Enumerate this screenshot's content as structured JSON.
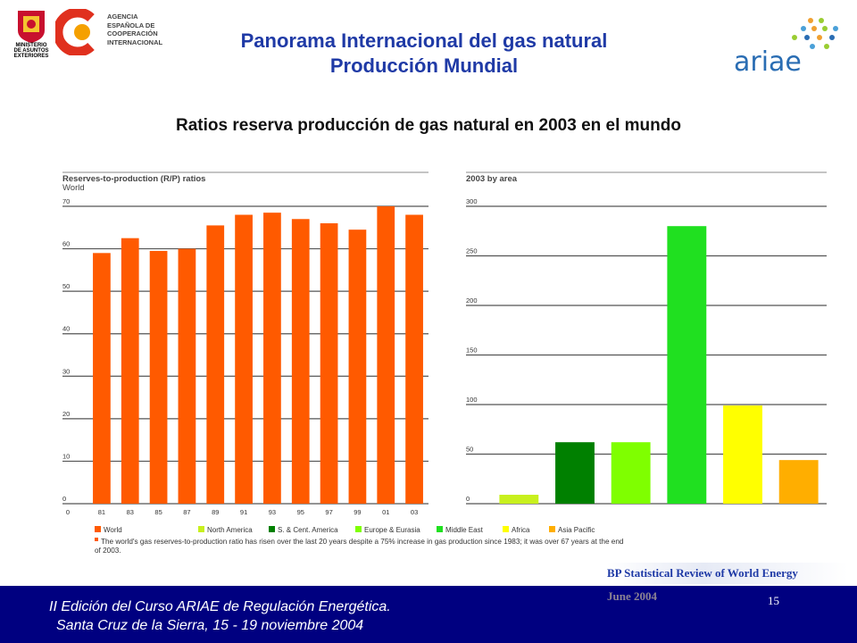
{
  "header": {
    "agency_lines": [
      "AGENCIA",
      "ESPAÑOLA DE",
      "COOPERACIÓN",
      "INTERNACIONAL"
    ],
    "ministry_lines": [
      "MINISTERIO",
      "DE ASUNTOS",
      "EXTERIORES"
    ],
    "title_line1": "Panorama Internacional del gas natural",
    "title_line2": "Producción Mundial",
    "ariae_logo_text": "ariae"
  },
  "subtitle": "Ratios reserva producción de gas natural en 2003 en el mundo",
  "chart_data": [
    {
      "type": "bar",
      "title": "Reserves-to-production (R/P) ratios",
      "subtitle": "World",
      "categories": [
        "81",
        "83",
        "85",
        "87",
        "89",
        "91",
        "93",
        "95",
        "97",
        "99",
        "01",
        "03"
      ],
      "x_zero_label": "0",
      "values": [
        59,
        62.5,
        59.5,
        60,
        65.5,
        68,
        68.5,
        67,
        66,
        64.5,
        70,
        68
      ],
      "ylim": [
        0,
        70
      ],
      "yticks": [
        0,
        10,
        20,
        30,
        40,
        50,
        60,
        70
      ],
      "color": "#ff5a00",
      "grid": true
    },
    {
      "type": "bar",
      "title": "2003 by area",
      "categories": [
        "North America",
        "S. & Cent. America",
        "Europe & Eurasia",
        "Middle East",
        "Africa",
        "Asia Pacific"
      ],
      "values": [
        9,
        62,
        62,
        280,
        99,
        44
      ],
      "colors": [
        "#c8f01e",
        "#008000",
        "#7fff00",
        "#20e020",
        "#ffff00",
        "#ffae00"
      ],
      "ylim": [
        0,
        300
      ],
      "yticks": [
        0,
        50,
        100,
        150,
        200,
        250,
        300
      ],
      "grid": true
    }
  ],
  "legend": [
    {
      "label": "World",
      "color": "#ff5a00"
    },
    {
      "label": "North America",
      "color": "#c8f01e"
    },
    {
      "label": "S. & Cent. America",
      "color": "#008000"
    },
    {
      "label": "Europe & Eurasia",
      "color": "#7fff00"
    },
    {
      "label": "Middle East",
      "color": "#20e020"
    },
    {
      "label": "Africa",
      "color": "#ffff00"
    },
    {
      "label": "Asia Pacific",
      "color": "#ffae00"
    }
  ],
  "caption_line1": "The world's gas reserves-to-production ratio has risen over the last 20 years despite a 75% increase in gas production since 1983; it was over 67 years at the end",
  "caption_line2": "of 2003.",
  "source_line1": "BP Statistical Review of World Energy",
  "source_line2": "June 2004",
  "footer": {
    "line1": "II Edición del Curso ARIAE de Regulación Energética.",
    "line2": "Santa Cruz de la Sierra, 15 - 19 noviembre 2004",
    "page_number": "15"
  }
}
